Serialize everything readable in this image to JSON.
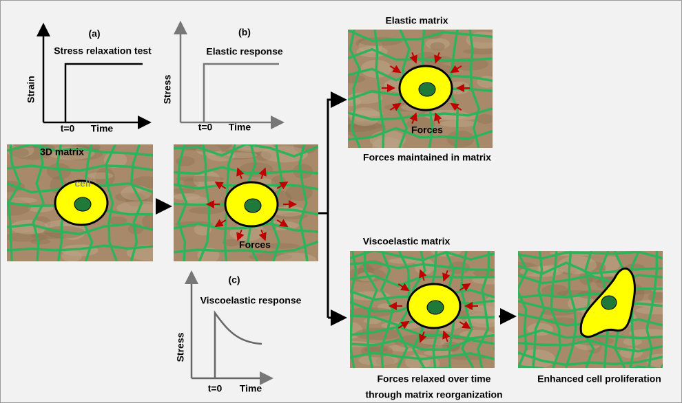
{
  "graphs": [
    {
      "label": "(a)",
      "title": "Stress relaxation test",
      "y_label": "Strain",
      "t0": "t=0",
      "x_label": "Time"
    },
    {
      "label": "(b)",
      "title": "Elastic response",
      "y_label": "Stress",
      "t0": "t=0",
      "x_label": "Time"
    },
    {
      "label": "(c)",
      "title": "Viscoelastic response",
      "y_label": "Stress",
      "t0": "t=0",
      "x_label": "Time"
    }
  ],
  "panels": {
    "matrix": {
      "title": "3D matrix",
      "cell": "cell"
    },
    "forces": {
      "caption": "Forces"
    },
    "elastic": {
      "title": "Elastic matrix",
      "forces": "Forces",
      "caption": "Forces maintained in matrix"
    },
    "viscoelastic": {
      "title": "Viscoelastic matrix",
      "caption_1": "Forces relaxed  over time",
      "caption_2": "through matrix reorganization"
    },
    "proliferation": {
      "caption": "Enhanced cell proliferation"
    }
  }
}
